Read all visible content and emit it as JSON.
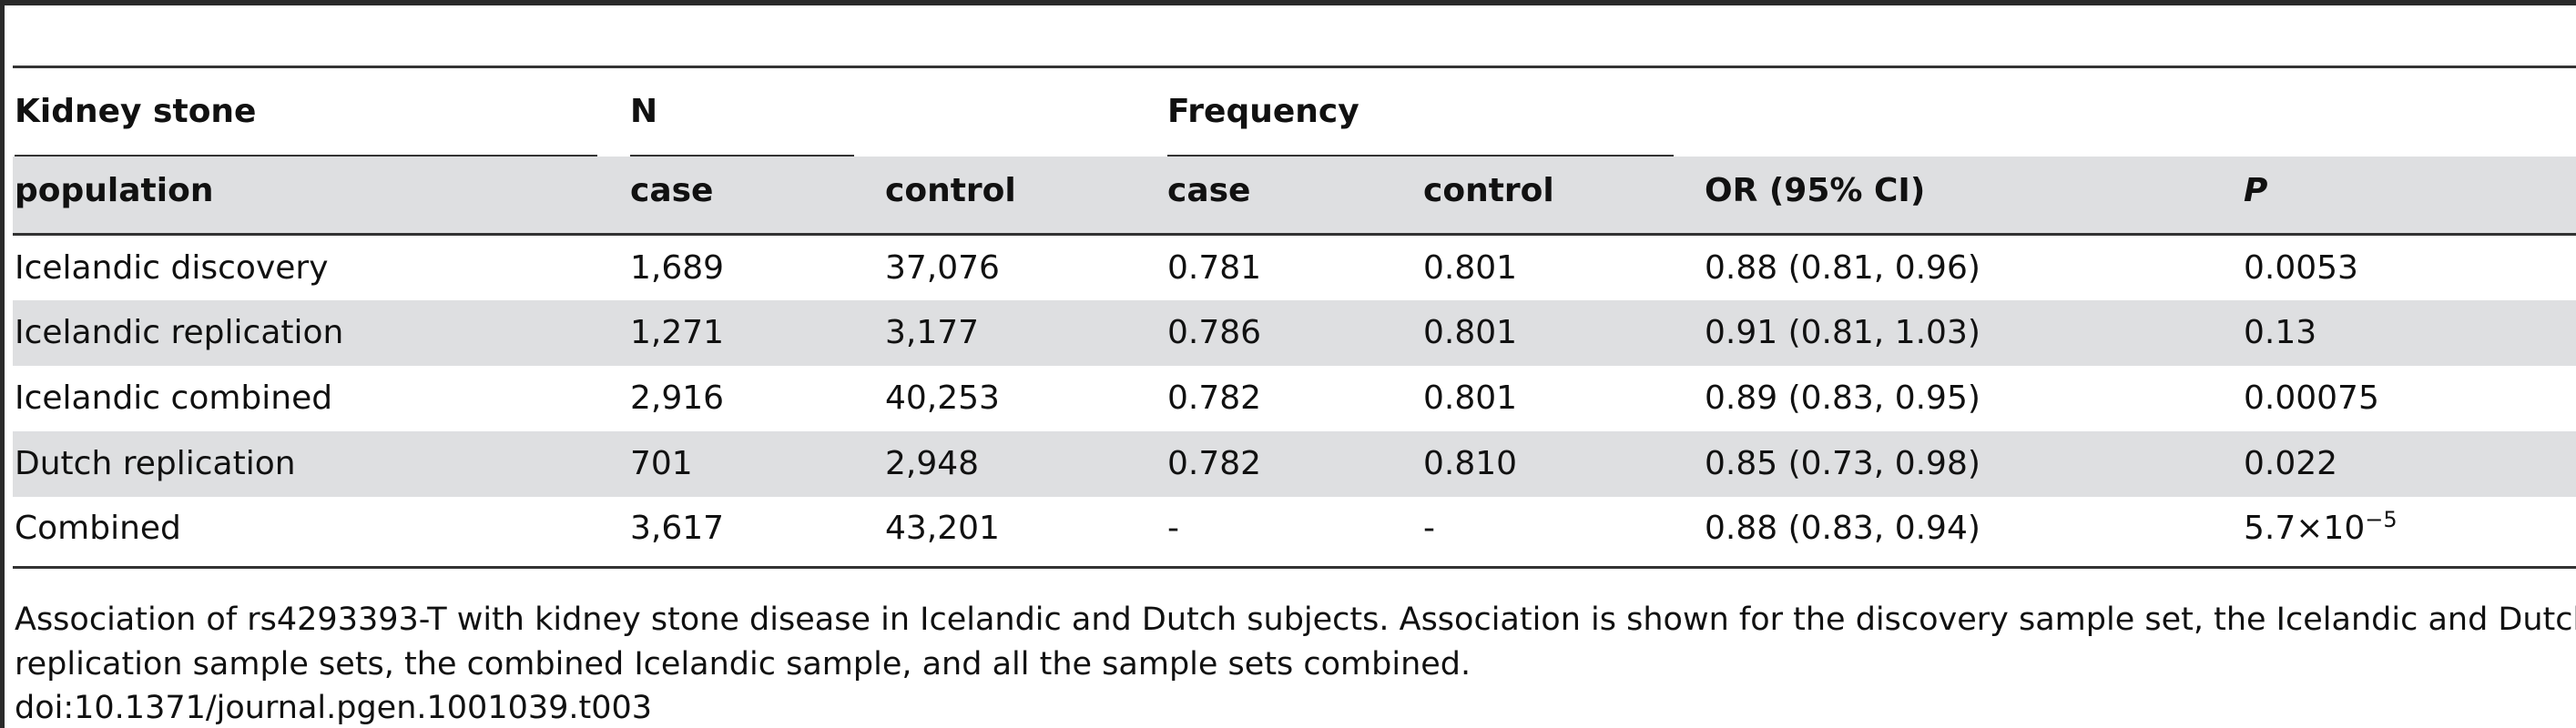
{
  "table": {
    "group_headers": {
      "col1": "Kidney stone",
      "n": "N",
      "frequency": "Frequency"
    },
    "sub_headers": {
      "population": "population",
      "n_case": "case",
      "n_control": "control",
      "freq_case": "case",
      "freq_control": "control",
      "or": "OR (95% CI)",
      "p": "P"
    },
    "rows": [
      {
        "population": "Icelandic discovery",
        "n_case": "1,689",
        "n_control": "37,076",
        "freq_case": "0.781",
        "freq_control": "0.801",
        "or": "0.88 (0.81, 0.96)",
        "p": "0.0053"
      },
      {
        "population": "Icelandic replication",
        "n_case": "1,271",
        "n_control": "3,177",
        "freq_case": "0.786",
        "freq_control": "0.801",
        "or": "0.91 (0.81, 1.03)",
        "p": "0.13"
      },
      {
        "population": "Icelandic combined",
        "n_case": "2,916",
        "n_control": "40,253",
        "freq_case": "0.782",
        "freq_control": "0.801",
        "or": "0.89 (0.83, 0.95)",
        "p": "0.00075"
      },
      {
        "population": "Dutch replication",
        "n_case": "701",
        "n_control": "2,948",
        "freq_case": "0.782",
        "freq_control": "0.810",
        "or": "0.85 (0.73, 0.98)",
        "p": "0.022"
      },
      {
        "population": "Combined",
        "n_case": "3,617",
        "n_control": "43,201",
        "freq_case": "-",
        "freq_control": "-",
        "or": "0.88 (0.83, 0.94)",
        "p_base": "5.7×10",
        "p_exp": "−5"
      }
    ]
  },
  "caption": {
    "line1": "Association of rs4293393-T with kidney stone disease in Icelandic and Dutch subjects. Association is shown for the discovery sample set, the Icelandic and Dutch",
    "line2": "replication sample sets, the combined Icelandic sample, and all the sample sets combined.",
    "doi": "doi:10.1371/journal.pgen.1001039.t003"
  }
}
